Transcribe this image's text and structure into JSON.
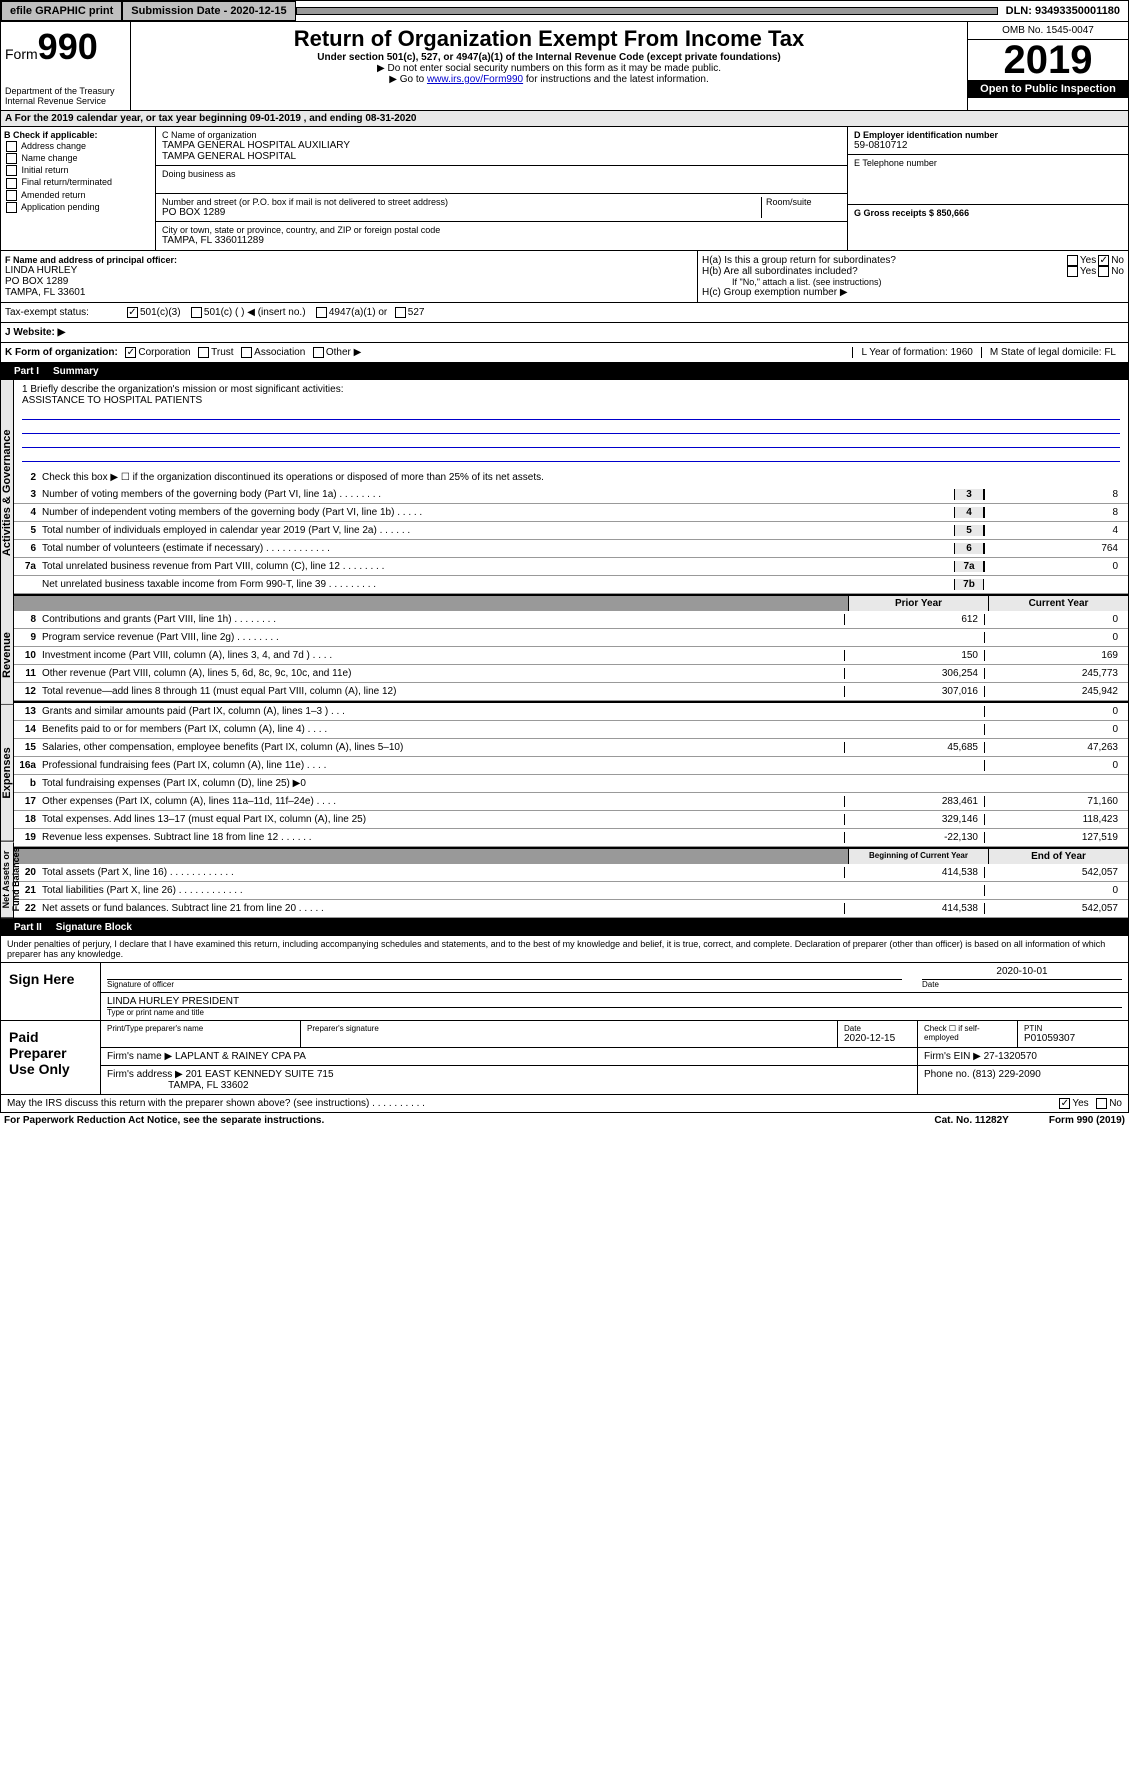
{
  "top": {
    "efile": "efile GRAPHIC print",
    "submission": "Submission Date - 2020-12-15",
    "dln": "DLN: 93493350001180"
  },
  "header": {
    "form": "Form",
    "num": "990",
    "dept": "Department of the Treasury\nInternal Revenue Service",
    "title": "Return of Organization Exempt From Income Tax",
    "sub": "Under section 501(c), 527, or 4947(a)(1) of the Internal Revenue Code (except private foundations)",
    "note1": "▶ Do not enter social security numbers on this form as it may be made public.",
    "note2_pre": "▶ Go to ",
    "note2_link": "www.irs.gov/Form990",
    "note2_post": " for instructions and the latest information.",
    "omb": "OMB No. 1545-0047",
    "year": "2019",
    "open": "Open to Public Inspection"
  },
  "cal": "A For the 2019 calendar year, or tax year beginning 09-01-2019      , and ending 08-31-2020",
  "b": {
    "label": "B Check if applicable:",
    "items": [
      "Address change",
      "Name change",
      "Initial return",
      "Final return/terminated",
      "Amended return",
      "Application pending"
    ]
  },
  "c": {
    "name_label": "C Name of organization",
    "name": "TAMPA GENERAL HOSPITAL AUXILIARY\nTAMPA GENERAL HOSPITAL",
    "dba_label": "Doing business as",
    "addr_label": "Number and street (or P.O. box if mail is not delivered to street address)",
    "room_label": "Room/suite",
    "addr": "PO BOX 1289",
    "city_label": "City or town, state or province, country, and ZIP or foreign postal code",
    "city": "TAMPA, FL  336011289"
  },
  "d": {
    "label": "D Employer identification number",
    "val": "59-0810712",
    "e_label": "E Telephone number",
    "g_label": "G Gross receipts $ 850,666"
  },
  "f": {
    "label": "F  Name and address of principal officer:",
    "name": "LINDA HURLEY",
    "addr": "PO BOX 1289",
    "city": "TAMPA, FL  33601"
  },
  "h": {
    "a": "H(a)  Is this a group return for subordinates?",
    "b": "H(b)  Are all subordinates included?",
    "b_note": "If \"No,\" attach a list. (see instructions)",
    "c": "H(c)  Group exemption number ▶"
  },
  "tax_status": {
    "label": "Tax-exempt status:",
    "opts": [
      "501(c)(3)",
      "501(c) (  ) ◀ (insert no.)",
      "4947(a)(1) or",
      "527"
    ]
  },
  "website": "J   Website: ▶",
  "k": {
    "label": "K Form of organization:",
    "opts": [
      "Corporation",
      "Trust",
      "Association",
      "Other ▶"
    ],
    "l": "L Year of formation: 1960",
    "m": "M State of legal domicile: FL"
  },
  "part1": {
    "num": "Part I",
    "title": "Summary",
    "vtabs": [
      "Activities & Governance",
      "Revenue",
      "Expenses",
      "Net Assets or Fund Balances"
    ],
    "q1": "1  Briefly describe the organization's mission or most significant activities:",
    "mission": "ASSISTANCE TO HOSPITAL PATIENTS",
    "q2": "Check this box ▶ ☐  if the organization discontinued its operations or disposed of more than 25% of its net assets.",
    "lines_gov": [
      {
        "n": "3",
        "t": "Number of voting members of the governing body (Part VI, line 1a)   .    .    .    .    .    .    .    .",
        "b": "3",
        "v": "8"
      },
      {
        "n": "4",
        "t": "Number of independent voting members of the governing body (Part VI, line 1b)   .    .    .    .    .",
        "b": "4",
        "v": "8"
      },
      {
        "n": "5",
        "t": "Total number of individuals employed in calendar year 2019 (Part V, line 2a)   .    .    .    .    .    .",
        "b": "5",
        "v": "4"
      },
      {
        "n": "6",
        "t": "Total number of volunteers (estimate if necessary)   .    .    .    .    .    .    .    .    .    .    .    .",
        "b": "6",
        "v": "764"
      },
      {
        "n": "7a",
        "t": "Total unrelated business revenue from Part VIII, column (C), line 12   .    .    .    .    .    .    .    .",
        "b": "7a",
        "v": "0"
      },
      {
        "n": "",
        "t": "Net unrelated business taxable income from Form 990-T, line 39   .    .    .    .    .    .    .    .    .",
        "b": "7b",
        "v": ""
      }
    ],
    "py_hdr": "Prior Year",
    "cy_hdr": "Current Year",
    "lines_rev": [
      {
        "n": "8",
        "t": "Contributions and grants (Part VIII, line 1h)   .    .    .    .    .    .    .    .",
        "py": "612",
        "cy": "0"
      },
      {
        "n": "9",
        "t": "Program service revenue (Part VIII, line 2g)   .    .    .    .    .    .    .    .",
        "py": "",
        "cy": "0"
      },
      {
        "n": "10",
        "t": "Investment income (Part VIII, column (A), lines 3, 4, and 7d )   .    .    .    .",
        "py": "150",
        "cy": "169"
      },
      {
        "n": "11",
        "t": "Other revenue (Part VIII, column (A), lines 5, 6d, 8c, 9c, 10c, and 11e)",
        "py": "306,254",
        "cy": "245,773"
      },
      {
        "n": "12",
        "t": "Total revenue—add lines 8 through 11 (must equal Part VIII, column (A), line 12)",
        "py": "307,016",
        "cy": "245,942"
      }
    ],
    "lines_exp": [
      {
        "n": "13",
        "t": "Grants and similar amounts paid (Part IX, column (A), lines 1–3 )   .    .    .",
        "py": "",
        "cy": "0"
      },
      {
        "n": "14",
        "t": "Benefits paid to or for members (Part IX, column (A), line 4)   .    .    .    .",
        "py": "",
        "cy": "0"
      },
      {
        "n": "15",
        "t": "Salaries, other compensation, employee benefits (Part IX, column (A), lines 5–10)",
        "py": "45,685",
        "cy": "47,263"
      },
      {
        "n": "16a",
        "t": "Professional fundraising fees (Part IX, column (A), line 11e)    .    .    .    .",
        "py": "",
        "cy": "0"
      },
      {
        "n": "b",
        "t": "Total fundraising expenses (Part IX, column (D), line 25)  ▶0",
        "py": "#",
        "cy": "#"
      },
      {
        "n": "17",
        "t": "Other expenses (Part IX, column (A), lines 11a–11d, 11f–24e)   .    .    .    .",
        "py": "283,461",
        "cy": "71,160"
      },
      {
        "n": "18",
        "t": "Total expenses. Add lines 13–17 (must equal Part IX, column (A), line 25)",
        "py": "329,146",
        "cy": "118,423"
      },
      {
        "n": "19",
        "t": "Revenue less expenses. Subtract line 18 from line 12   .    .    .    .    .    .",
        "py": "-22,130",
        "cy": "127,519"
      }
    ],
    "by_hdr": "Beginning of Current Year",
    "ey_hdr": "End of Year",
    "lines_net": [
      {
        "n": "20",
        "t": "Total assets (Part X, line 16)   .    .    .    .    .    .    .    .    .    .    .    .",
        "py": "414,538",
        "cy": "542,057"
      },
      {
        "n": "21",
        "t": "Total liabilities (Part X, line 26)   .    .    .    .    .    .    .    .    .    .    .    .",
        "py": "",
        "cy": "0"
      },
      {
        "n": "22",
        "t": "Net assets or fund balances. Subtract line 21 from line 20   .    .    .    .    .",
        "py": "414,538",
        "cy": "542,057"
      }
    ]
  },
  "part2": {
    "num": "Part II",
    "title": "Signature Block",
    "decl": "Under penalties of perjury, I declare that I have examined this return, including accompanying schedules and statements, and to the best of my knowledge and belief, it is true, correct, and complete. Declaration of preparer (other than officer) is based on all information of which preparer has any knowledge."
  },
  "sign": {
    "label": "Sign Here",
    "sig_label": "Signature of officer",
    "date": "2020-10-01",
    "date_label": "Date",
    "name": "LINDA HURLEY PRESIDENT",
    "name_label": "Type or print name and title"
  },
  "paid": {
    "label": "Paid Preparer Use Only",
    "h1": "Print/Type preparer's name",
    "h2": "Preparer's signature",
    "h3": "Date",
    "h3v": "2020-12-15",
    "h4": "Check ☐ if self-employed",
    "h5": "PTIN",
    "h5v": "P01059307",
    "firm_label": "Firm's name      ▶",
    "firm": "LAPLANT & RAINEY CPA PA",
    "ein_label": "Firm's EIN ▶",
    "ein": "27-1320570",
    "addr_label": "Firm's address ▶",
    "addr": "201 EAST KENNEDY SUITE 715",
    "addr2": "TAMPA, FL  33602",
    "phone_label": "Phone no.",
    "phone": "(813) 229-2090"
  },
  "discuss": "May the IRS discuss this return with the preparer shown above? (see instructions)    .    .    .    .    .    .    .    .    .    .",
  "footer": {
    "l": "For Paperwork Reduction Act Notice, see the separate instructions.",
    "m": "Cat. No. 11282Y",
    "r": "Form 990 (2019)"
  }
}
